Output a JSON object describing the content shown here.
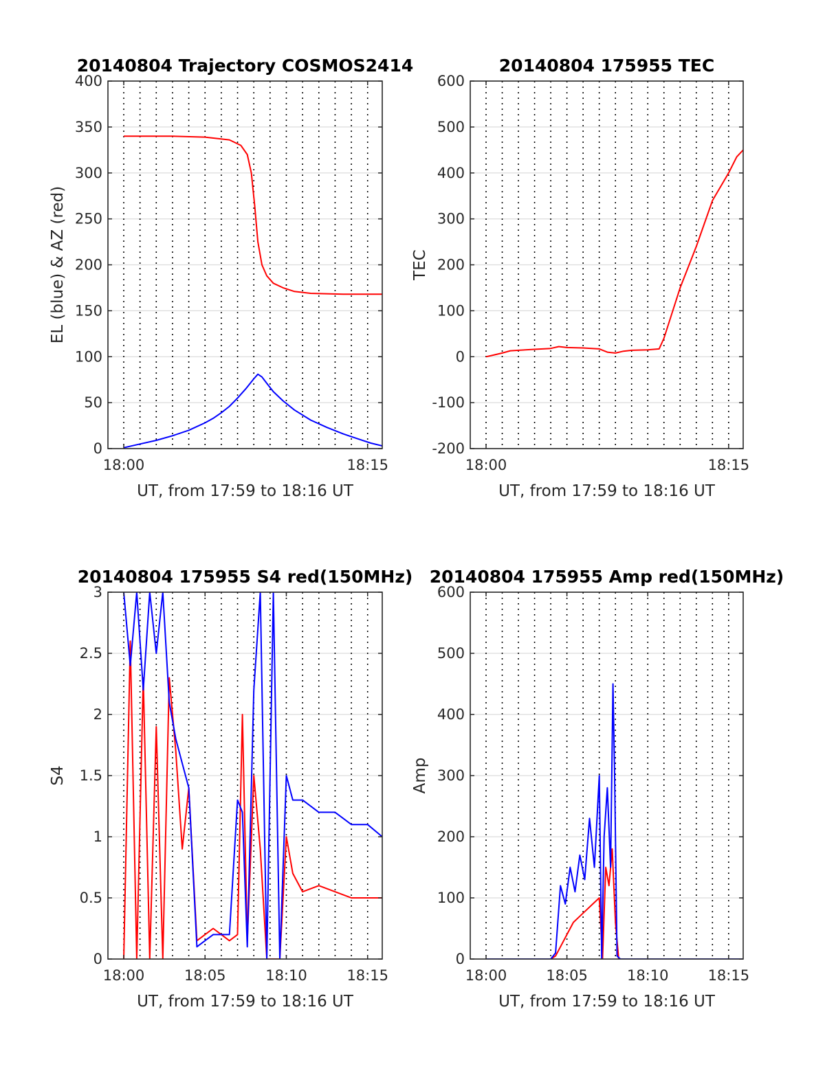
{
  "chart_data": [
    {
      "type": "line",
      "title": "20140804 Trajectory COSMOS2414",
      "xlabel": "UT, from 17:59 to 18:16 UT",
      "ylabel": "EL (blue) & AZ (red)",
      "xlim": [
        "17:59:30",
        "18:15:55"
      ],
      "ylim": [
        0,
        400
      ],
      "yticks": [
        "0",
        "50",
        "100",
        "150",
        "200",
        "250",
        "300",
        "350",
        "400"
      ],
      "xtick_labels": [
        "18:00",
        "18:15"
      ],
      "grid": "horizontal solid, dotted vertical lines every minute",
      "series": [
        {
          "color": "#ff0000",
          "x": [
            0.0,
            3.0,
            5.0,
            6.5,
            7.2,
            7.6,
            7.85,
            8.05,
            8.25,
            8.5,
            8.8,
            9.2,
            9.8,
            10.5,
            11.5,
            12.5,
            13.5,
            14.5,
            15.2,
            15.9
          ],
          "y": [
            340,
            340,
            339,
            336,
            330,
            320,
            300,
            265,
            225,
            200,
            188,
            180,
            175,
            171,
            169,
            168.5,
            168,
            168,
            168,
            168
          ]
        },
        {
          "color": "#0000ff",
          "x": [
            0.0,
            1.0,
            2.0,
            3.0,
            4.0,
            5.0,
            5.5,
            6.0,
            6.5,
            7.0,
            7.5,
            8.0,
            8.25,
            8.5,
            8.8,
            9.2,
            9.8,
            10.5,
            11.5,
            12.5,
            13.5,
            14.5,
            15.2,
            15.9
          ],
          "y": [
            1,
            5,
            9,
            14,
            20,
            28,
            33,
            39,
            46,
            55,
            65,
            76,
            81,
            78,
            71,
            62,
            52,
            42,
            31,
            23,
            16,
            10,
            6,
            3
          ]
        }
      ]
    },
    {
      "type": "line",
      "title": "20140804 175955 TEC",
      "xlabel": "UT, from 17:59 to 18:16 UT",
      "ylabel": "TEC",
      "xlim": [
        "17:59:30",
        "18:15:55"
      ],
      "ylim": [
        -200,
        600
      ],
      "yticks": [
        "-200",
        "-100",
        "0",
        "100",
        "200",
        "300",
        "400",
        "500",
        "600"
      ],
      "xtick_labels": [
        "18:00",
        "18:15"
      ],
      "grid": "horizontal solid, dotted vertical lines every minute",
      "series": [
        {
          "color": "#ff0000",
          "x": [
            0.0,
            0.5,
            1.0,
            1.5,
            2.0,
            3.0,
            4.0,
            4.5,
            5.0,
            6.0,
            7.0,
            7.5,
            8.0,
            8.5,
            9.0,
            10.0,
            10.7,
            11.0,
            12.0,
            13.0,
            14.0,
            15.0,
            15.5,
            15.9
          ],
          "y": [
            0,
            4,
            8,
            13,
            14,
            16,
            18,
            22,
            20,
            19,
            17,
            10,
            8,
            12,
            14,
            15,
            17,
            40,
            150,
            240,
            340,
            400,
            435,
            450
          ]
        }
      ]
    },
    {
      "type": "line",
      "title": "20140804 175955 S4 red(150MHz)",
      "xlabel": "UT, from 17:59 to 18:16 UT",
      "ylabel": "S4",
      "xlim": [
        "17:59:30",
        "18:15:55"
      ],
      "ylim": [
        0,
        3
      ],
      "yticks": [
        "0",
        "0.5",
        "1",
        "1.5",
        "2",
        "2.5",
        "3"
      ],
      "xtick_labels": [
        "18:00",
        "18:05",
        "18:10",
        "18:15"
      ],
      "grid": "horizontal solid, dotted vertical lines every minute",
      "series": [
        {
          "color": "#ff0000",
          "x": [
            0.0,
            0.4,
            0.8,
            1.2,
            1.6,
            2.0,
            2.4,
            2.8,
            3.2,
            3.6,
            4.0,
            4.5,
            5.0,
            5.5,
            6.0,
            6.5,
            7.0,
            7.3,
            7.6,
            8.0,
            8.4,
            8.8,
            9.2,
            9.6,
            10.0,
            10.4,
            11.0,
            12.0,
            13.0,
            14.0,
            15.0,
            15.9
          ],
          "y": [
            0,
            2.6,
            0,
            2.3,
            0,
            1.9,
            0,
            2.3,
            1.7,
            0.9,
            1.4,
            0.15,
            0.2,
            0.25,
            0.2,
            0.15,
            0.2,
            2.0,
            0.15,
            1.5,
            0.9,
            0,
            0,
            0,
            1.0,
            0.7,
            0.55,
            0.6,
            0.55,
            0.5,
            0.5,
            0.5
          ]
        },
        {
          "color": "#0000ff",
          "x": [
            0.0,
            0.4,
            0.8,
            1.2,
            1.6,
            2.0,
            2.4,
            2.8,
            3.2,
            3.6,
            4.0,
            4.5,
            5.0,
            5.5,
            6.0,
            6.5,
            7.0,
            7.3,
            7.6,
            8.0,
            8.4,
            8.8,
            9.2,
            9.6,
            10.0,
            10.4,
            11.0,
            12.0,
            13.0,
            14.0,
            15.0,
            15.9
          ],
          "y": [
            3,
            2.4,
            3,
            2.2,
            3,
            2.5,
            3,
            2.1,
            1.8,
            1.6,
            1.4,
            0.1,
            0.15,
            0.2,
            0.2,
            0.2,
            1.3,
            1.2,
            0.1,
            2.2,
            3,
            0,
            3,
            0,
            1.5,
            1.3,
            1.3,
            1.2,
            1.2,
            1.1,
            1.1,
            1.0
          ]
        }
      ]
    },
    {
      "type": "line",
      "title": "20140804 175955 Amp red(150MHz)",
      "xlabel": "UT, from 17:59 to 18:16 UT",
      "ylabel": "Amp",
      "xlim": [
        "17:59:30",
        "18:15:55"
      ],
      "ylim": [
        0,
        600
      ],
      "yticks": [
        "0",
        "100",
        "200",
        "300",
        "400",
        "500",
        "600"
      ],
      "xtick_labels": [
        "18:00",
        "18:05",
        "18:10",
        "18:15"
      ],
      "grid": "horizontal solid, dotted vertical lines every minute",
      "series": [
        {
          "color": "#ff0000",
          "x": [
            0.0,
            2.0,
            4.0,
            4.3,
            4.6,
            5.0,
            5.4,
            5.8,
            6.2,
            6.6,
            7.0,
            7.2,
            7.4,
            7.6,
            7.8,
            8.0,
            8.2,
            9.0,
            11.0,
            13.0,
            15.9
          ],
          "y": [
            0,
            0,
            0,
            5,
            20,
            40,
            60,
            70,
            80,
            90,
            100,
            0,
            150,
            120,
            180,
            60,
            0,
            0,
            0,
            0,
            0
          ]
        },
        {
          "color": "#0000ff",
          "x": [
            0.0,
            2.0,
            4.0,
            4.3,
            4.6,
            4.9,
            5.2,
            5.5,
            5.8,
            6.1,
            6.4,
            6.7,
            7.0,
            7.15,
            7.3,
            7.5,
            7.7,
            7.85,
            7.95,
            8.1,
            8.3,
            9.0,
            11.0,
            13.0,
            15.9
          ],
          "y": [
            0,
            0,
            0,
            10,
            120,
            90,
            150,
            110,
            170,
            130,
            230,
            150,
            300,
            0,
            200,
            280,
            150,
            450,
            300,
            5,
            0,
            0,
            0,
            0,
            0
          ]
        }
      ]
    }
  ]
}
